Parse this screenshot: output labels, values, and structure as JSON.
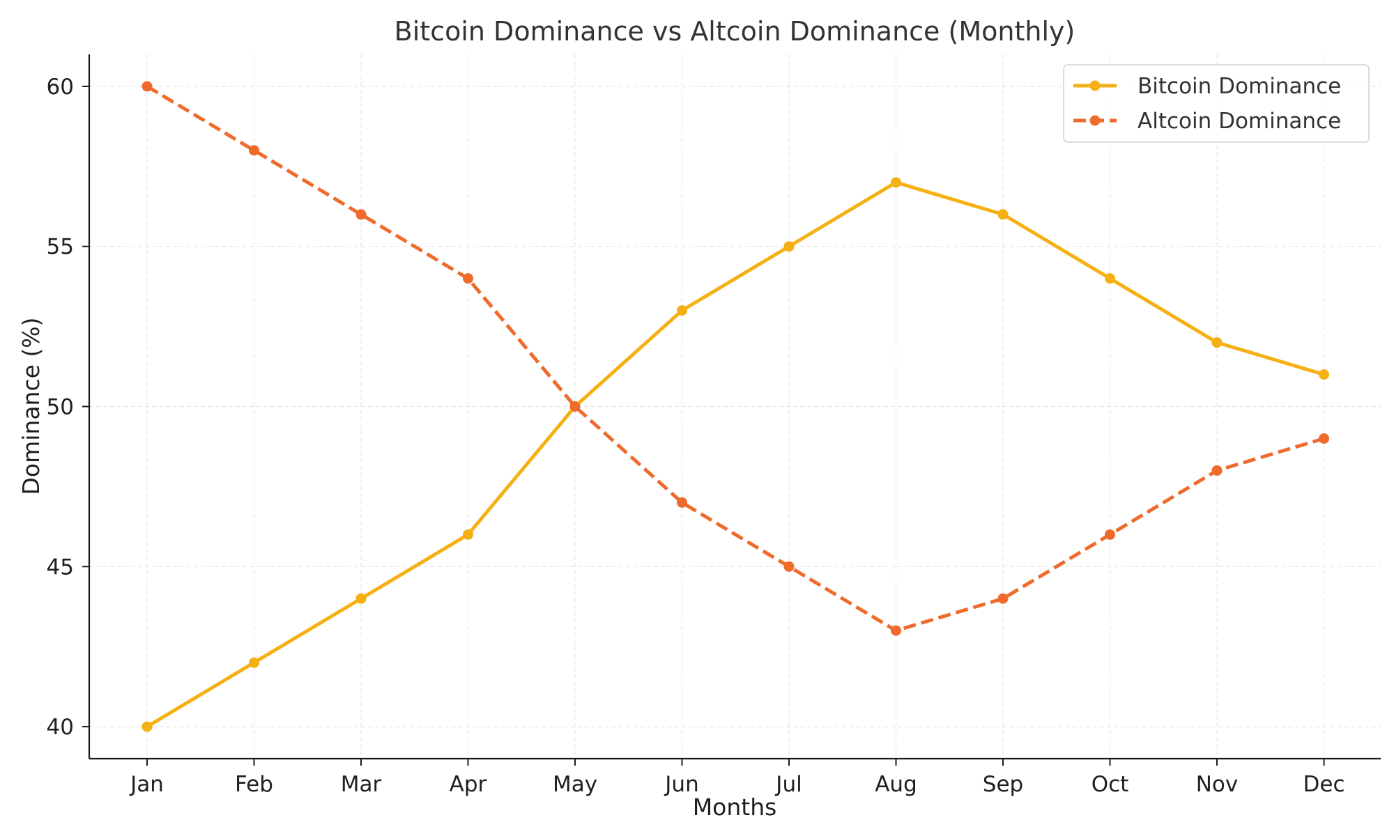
{
  "chart_data": {
    "type": "line",
    "title": "Bitcoin Dominance vs Altcoin Dominance (Monthly)",
    "xlabel": "Months",
    "ylabel": "Dominance (%)",
    "categories": [
      "Jan",
      "Feb",
      "Mar",
      "Apr",
      "May",
      "Jun",
      "Jul",
      "Aug",
      "Sep",
      "Oct",
      "Nov",
      "Dec"
    ],
    "y_ticks": [
      40,
      45,
      50,
      55,
      60
    ],
    "ylim": [
      39,
      61
    ],
    "grid": true,
    "legend_position": "top-right",
    "series": [
      {
        "name": "Bitcoin Dominance",
        "values": [
          40,
          42,
          44,
          46,
          50,
          53,
          55,
          57,
          56,
          54,
          52,
          51
        ],
        "color": "#f5b014",
        "line_style": "solid",
        "marker": "circle"
      },
      {
        "name": "Altcoin Dominance",
        "values": [
          60,
          58,
          56,
          54,
          50,
          47,
          45,
          43,
          44,
          46,
          48,
          49
        ],
        "color": "#ee6b2c",
        "line_style": "dashed",
        "marker": "circle"
      }
    ]
  }
}
